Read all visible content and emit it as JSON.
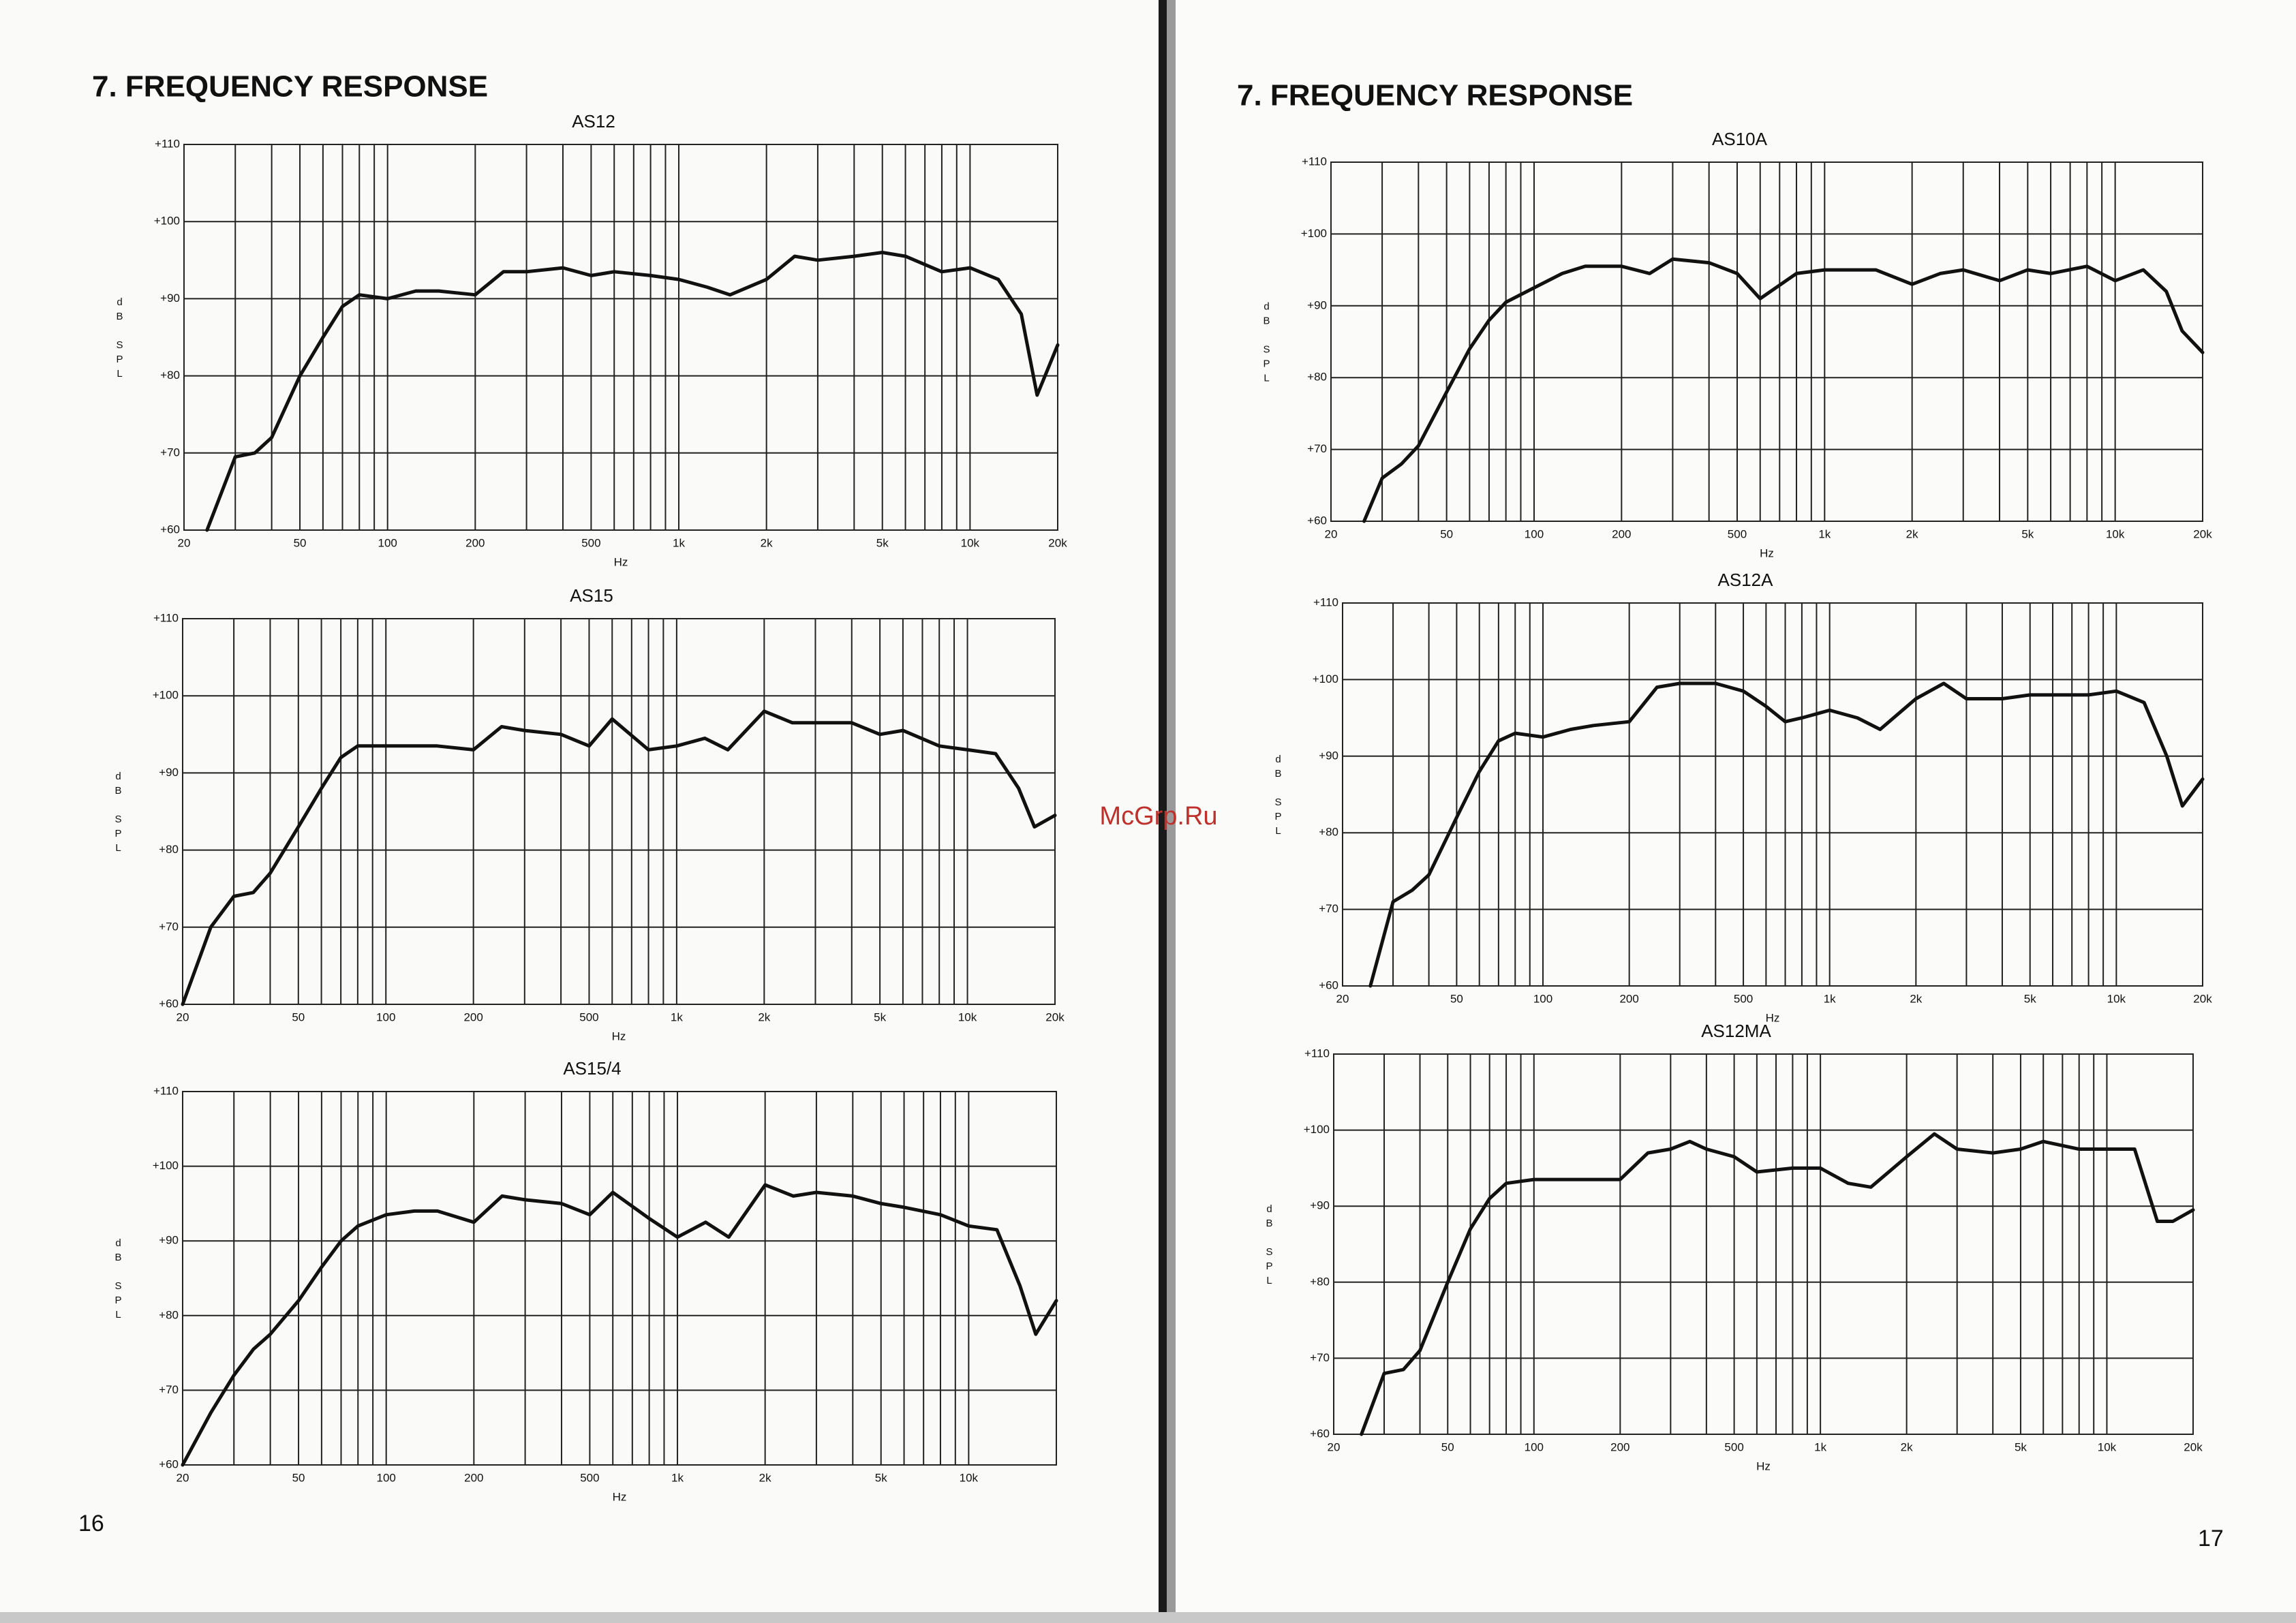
{
  "pages": [
    {
      "heading": "7. FREQUENCY RESPONSE",
      "page_number": 16
    },
    {
      "heading": "7. FREQUENCY RESPONSE",
      "page_number": 17
    }
  ],
  "watermark": "McGrp.Ru",
  "chart_data": [
    {
      "type": "line",
      "title": "AS12",
      "xlabel": "Hz",
      "ylabel": "dB SPL",
      "log_x": true,
      "grid": true,
      "color": "#111111",
      "xlim": [
        20,
        20000
      ],
      "ylim": [
        60,
        110
      ],
      "xticks": [
        20,
        50,
        100,
        200,
        500,
        {
          "value": 1000,
          "label": "1k"
        },
        {
          "value": 2000,
          "label": "2k"
        },
        {
          "value": 5000,
          "label": "5k"
        },
        {
          "value": 10000,
          "label": "10k"
        },
        {
          "value": 20000,
          "label": "20k"
        }
      ],
      "xminor": [
        30,
        40,
        60,
        70,
        80,
        90,
        300,
        400,
        600,
        700,
        800,
        900,
        3000,
        4000,
        6000,
        7000,
        8000,
        9000
      ],
      "yticks": [
        {
          "value": 60,
          "label": "+60"
        },
        {
          "value": 70,
          "label": "+70"
        },
        {
          "value": 80,
          "label": "+80"
        },
        {
          "value": 90,
          "label": "+90"
        },
        {
          "value": 100,
          "label": "+100"
        },
        {
          "value": 110,
          "label": "+110"
        }
      ],
      "x": [
        24,
        30,
        35,
        40,
        50,
        60,
        70,
        80,
        100,
        125,
        150,
        200,
        250,
        300,
        400,
        500,
        600,
        800,
        1000,
        1250,
        1500,
        2000,
        2500,
        3000,
        4000,
        5000,
        6000,
        8000,
        10000,
        12500,
        15000,
        17000,
        20000
      ],
      "values": [
        60,
        69.5,
        70,
        72,
        80,
        85,
        89,
        90.5,
        90,
        91,
        91,
        90.5,
        93.5,
        93.5,
        94,
        93,
        93.5,
        93,
        92.5,
        91.5,
        90.5,
        92.5,
        95.5,
        95,
        95.5,
        96,
        95.5,
        93.5,
        94,
        92.5,
        88,
        77.5,
        84
      ]
    },
    {
      "type": "line",
      "title": "AS15",
      "xlabel": "Hz",
      "ylabel": "dB SPL",
      "log_x": true,
      "grid": true,
      "color": "#111111",
      "xlim": [
        20,
        20000
      ],
      "ylim": [
        60,
        110
      ],
      "xticks": [
        20,
        50,
        100,
        200,
        500,
        {
          "value": 1000,
          "label": "1k"
        },
        {
          "value": 2000,
          "label": "2k"
        },
        {
          "value": 5000,
          "label": "5k"
        },
        {
          "value": 10000,
          "label": "10k"
        },
        {
          "value": 20000,
          "label": "20k"
        }
      ],
      "xminor": [
        30,
        40,
        60,
        70,
        80,
        90,
        300,
        400,
        600,
        700,
        800,
        900,
        3000,
        4000,
        6000,
        7000,
        8000,
        9000
      ],
      "yticks": [
        {
          "value": 60,
          "label": "+60"
        },
        {
          "value": 70,
          "label": "+70"
        },
        {
          "value": 80,
          "label": "+80"
        },
        {
          "value": 90,
          "label": "+90"
        },
        {
          "value": 100,
          "label": "+100"
        },
        {
          "value": 110,
          "label": "+110"
        }
      ],
      "x": [
        20,
        25,
        30,
        35,
        40,
        50,
        60,
        70,
        80,
        100,
        125,
        150,
        200,
        250,
        300,
        400,
        500,
        600,
        800,
        1000,
        1250,
        1500,
        2000,
        2500,
        3000,
        4000,
        5000,
        6000,
        8000,
        10000,
        12500,
        15000,
        17000,
        20000
      ],
      "values": [
        60,
        70,
        74,
        74.5,
        77,
        83,
        88,
        92,
        93.5,
        93.5,
        93.5,
        93.5,
        93,
        96,
        95.5,
        95,
        93.5,
        97,
        93,
        93.5,
        94.5,
        93,
        98,
        96.5,
        96.5,
        96.5,
        95,
        95.5,
        93.5,
        93,
        92.5,
        88,
        83,
        84.5
      ]
    },
    {
      "type": "line",
      "title": "AS15/4",
      "xlabel": "Hz",
      "ylabel": "dB SPL",
      "log_x": true,
      "grid": true,
      "color": "#111111",
      "xlim": [
        20,
        20000
      ],
      "ylim": [
        60,
        110
      ],
      "xticks": [
        20,
        50,
        100,
        200,
        500,
        {
          "value": 1000,
          "label": "1k"
        },
        {
          "value": 2000,
          "label": "2k"
        },
        {
          "value": 5000,
          "label": "5k"
        },
        {
          "value": 10000,
          "label": "10k"
        }
      ],
      "xminor": [
        30,
        40,
        60,
        70,
        80,
        90,
        300,
        400,
        600,
        700,
        800,
        900,
        3000,
        4000,
        6000,
        7000,
        8000,
        9000
      ],
      "yticks": [
        {
          "value": 60,
          "label": "+60"
        },
        {
          "value": 70,
          "label": "+70"
        },
        {
          "value": 80,
          "label": "+80"
        },
        {
          "value": 90,
          "label": "+90"
        },
        {
          "value": 100,
          "label": "+100"
        },
        {
          "value": 110,
          "label": "+110"
        }
      ],
      "x": [
        20,
        25,
        30,
        35,
        40,
        50,
        60,
        70,
        80,
        100,
        125,
        150,
        200,
        250,
        300,
        400,
        500,
        600,
        800,
        1000,
        1250,
        1500,
        2000,
        2500,
        3000,
        4000,
        5000,
        6000,
        8000,
        10000,
        12500,
        15000,
        17000,
        20000
      ],
      "values": [
        60,
        67,
        72,
        75.5,
        77.5,
        82,
        86.5,
        90,
        92,
        93.5,
        94,
        94,
        92.5,
        96,
        95.5,
        95,
        93.5,
        96.5,
        93,
        90.5,
        92.5,
        90.5,
        97.5,
        96,
        96.5,
        96,
        95,
        94.5,
        93.5,
        92,
        91.5,
        84,
        77.5,
        82
      ]
    },
    {
      "type": "line",
      "title": "AS10A",
      "xlabel": "Hz",
      "ylabel": "dB SPL",
      "log_x": true,
      "grid": true,
      "color": "#111111",
      "xlim": [
        20,
        20000
      ],
      "ylim": [
        60,
        110
      ],
      "xticks": [
        20,
        50,
        100,
        200,
        500,
        {
          "value": 1000,
          "label": "1k"
        },
        {
          "value": 2000,
          "label": "2k"
        },
        {
          "value": 5000,
          "label": "5k"
        },
        {
          "value": 10000,
          "label": "10k"
        },
        {
          "value": 20000,
          "label": "20k"
        }
      ],
      "xminor": [
        30,
        40,
        60,
        70,
        80,
        90,
        300,
        400,
        600,
        700,
        800,
        900,
        3000,
        4000,
        6000,
        7000,
        8000,
        9000
      ],
      "yticks": [
        {
          "value": 60,
          "label": "+60"
        },
        {
          "value": 70,
          "label": "+70"
        },
        {
          "value": 80,
          "label": "+80"
        },
        {
          "value": 90,
          "label": "+90"
        },
        {
          "value": 100,
          "label": "+100"
        },
        {
          "value": 110,
          "label": "+110"
        }
      ],
      "x": [
        26,
        30,
        35,
        40,
        50,
        60,
        70,
        80,
        100,
        125,
        150,
        200,
        250,
        300,
        400,
        500,
        600,
        800,
        1000,
        1250,
        1500,
        2000,
        2500,
        3000,
        4000,
        5000,
        6000,
        8000,
        10000,
        12500,
        15000,
        17000,
        20000
      ],
      "values": [
        60,
        66,
        68,
        70.5,
        78,
        84,
        88,
        90.5,
        92.5,
        94.5,
        95.5,
        95.5,
        94.5,
        96.5,
        96,
        94.5,
        91,
        94.5,
        95,
        95,
        95,
        93,
        94.5,
        95,
        93.5,
        95,
        94.5,
        95.5,
        93.5,
        95,
        92,
        86.5,
        83.5
      ]
    },
    {
      "type": "line",
      "title": "AS12A",
      "xlabel": "Hz",
      "ylabel": "dB SPL",
      "log_x": true,
      "grid": true,
      "color": "#111111",
      "xlim": [
        20,
        20000
      ],
      "ylim": [
        60,
        110
      ],
      "xticks": [
        20,
        50,
        100,
        200,
        500,
        {
          "value": 1000,
          "label": "1k"
        },
        {
          "value": 2000,
          "label": "2k"
        },
        {
          "value": 5000,
          "label": "5k"
        },
        {
          "value": 10000,
          "label": "10k"
        },
        {
          "value": 20000,
          "label": "20k"
        }
      ],
      "xminor": [
        30,
        40,
        60,
        70,
        80,
        90,
        300,
        400,
        600,
        700,
        800,
        900,
        3000,
        4000,
        6000,
        7000,
        8000,
        9000
      ],
      "yticks": [
        {
          "value": 60,
          "label": "+60"
        },
        {
          "value": 70,
          "label": "+70"
        },
        {
          "value": 80,
          "label": "+80"
        },
        {
          "value": 90,
          "label": "+90"
        },
        {
          "value": 100,
          "label": "+100"
        },
        {
          "value": 110,
          "label": "+110"
        }
      ],
      "x": [
        25,
        30,
        35,
        40,
        50,
        60,
        70,
        80,
        100,
        125,
        150,
        200,
        250,
        300,
        400,
        500,
        600,
        700,
        800,
        1000,
        1250,
        1500,
        2000,
        2500,
        3000,
        4000,
        5000,
        6000,
        8000,
        10000,
        12500,
        15000,
        17000,
        20000
      ],
      "values": [
        60,
        71,
        72.5,
        74.5,
        82,
        88,
        92,
        93,
        92.5,
        93.5,
        94,
        94.5,
        99,
        99.5,
        99.5,
        98.5,
        96.5,
        94.5,
        95,
        96,
        95,
        93.5,
        97.5,
        99.5,
        97.5,
        97.5,
        98,
        98,
        98,
        98.5,
        97,
        90,
        83.5,
        87
      ]
    },
    {
      "type": "line",
      "title": "AS12MA",
      "xlabel": "Hz",
      "ylabel": "dB SPL",
      "log_x": true,
      "grid": true,
      "color": "#111111",
      "xlim": [
        20,
        20000
      ],
      "ylim": [
        60,
        110
      ],
      "xticks": [
        20,
        50,
        100,
        200,
        500,
        {
          "value": 1000,
          "label": "1k"
        },
        {
          "value": 2000,
          "label": "2k"
        },
        {
          "value": 5000,
          "label": "5k"
        },
        {
          "value": 10000,
          "label": "10k"
        },
        {
          "value": 20000,
          "label": "20k"
        }
      ],
      "xminor": [
        30,
        40,
        60,
        70,
        80,
        90,
        300,
        400,
        600,
        700,
        800,
        900,
        3000,
        4000,
        6000,
        7000,
        8000,
        9000
      ],
      "yticks": [
        {
          "value": 60,
          "label": "+60"
        },
        {
          "value": 70,
          "label": "+70"
        },
        {
          "value": 80,
          "label": "+80"
        },
        {
          "value": 90,
          "label": "+90"
        },
        {
          "value": 100,
          "label": "+100"
        },
        {
          "value": 110,
          "label": "+110"
        }
      ],
      "x": [
        25,
        30,
        35,
        40,
        50,
        60,
        70,
        80,
        100,
        125,
        150,
        200,
        250,
        300,
        350,
        400,
        500,
        600,
        800,
        1000,
        1250,
        1500,
        2000,
        2500,
        3000,
        4000,
        5000,
        6000,
        8000,
        10000,
        12500,
        15000,
        17000,
        20000
      ],
      "values": [
        60,
        68,
        68.5,
        71,
        80,
        87,
        91,
        93,
        93.5,
        93.5,
        93.5,
        93.5,
        97,
        97.5,
        98.5,
        97.5,
        96.5,
        94.5,
        95,
        95,
        93,
        92.5,
        96.5,
        99.5,
        97.5,
        97,
        97.5,
        98.5,
        97.5,
        97.5,
        97.5,
        88,
        88,
        89.5
      ]
    }
  ]
}
